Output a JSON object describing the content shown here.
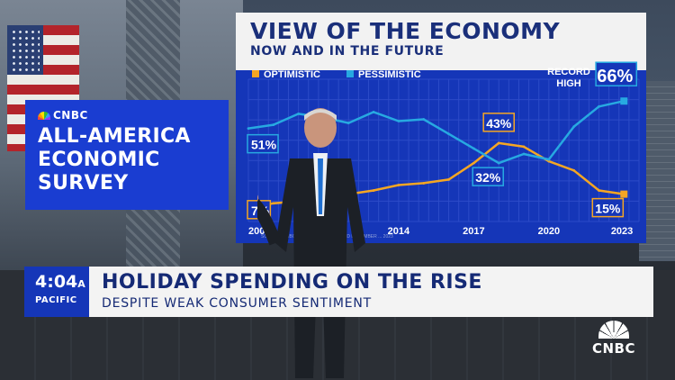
{
  "survey_panel": {
    "brand": "CNBC",
    "title_lines": [
      "ALL-AMERICA",
      "ECONOMIC",
      "SURVEY"
    ]
  },
  "screen": {
    "title": "VIEW OF THE ECONOMY",
    "subtitle": "NOW AND IN THE FUTURE",
    "record_label_lines": [
      "RECORD",
      "HIGH"
    ],
    "source_note": "SOURCE: CNBC ... SURVEY CONDUCTED DECEMBER ... 2023"
  },
  "chart_data": {
    "type": "line",
    "title": "VIEW OF THE ECONOMY",
    "subtitle": "NOW AND IN THE FUTURE",
    "x_tick_labels": [
      "2008",
      "2014",
      "2017",
      "2020",
      "2023"
    ],
    "x_ticks": [
      2008,
      2014,
      2017,
      2020,
      2023
    ],
    "xlim": [
      2008,
      2023.6
    ],
    "ylim": [
      0,
      75
    ],
    "grid": true,
    "legend_position": "top-left",
    "series": [
      {
        "name": "OPTIMISTIC",
        "color": "#f5a623",
        "x": [
          2008,
          2009,
          2010,
          2011,
          2012,
          2013,
          2014,
          2015,
          2016,
          2017,
          2018,
          2019,
          2020,
          2021,
          2022,
          2023
        ],
        "y": [
          7,
          10,
          11,
          13,
          15,
          17,
          20,
          21,
          23,
          32,
          43,
          41,
          33,
          28,
          17,
          15
        ]
      },
      {
        "name": "PESSIMISTIC",
        "color": "#27a9e1",
        "x": [
          2008,
          2009,
          2010,
          2011,
          2012,
          2013,
          2014,
          2015,
          2016,
          2017,
          2018,
          2019,
          2020,
          2021,
          2022,
          2023
        ],
        "y": [
          51,
          53,
          59,
          57,
          54,
          60,
          55,
          56,
          48,
          40,
          32,
          37,
          34,
          52,
          63,
          66
        ]
      }
    ],
    "annotations": [
      {
        "text": "51%",
        "series": "PESSIMISTIC",
        "x": 2008
      },
      {
        "text": "7%",
        "series": "OPTIMISTIC",
        "x": 2008
      },
      {
        "text": "43%",
        "series": "OPTIMISTIC",
        "x": 2018
      },
      {
        "text": "32%",
        "series": "PESSIMISTIC",
        "x": 2018
      },
      {
        "text": "15%",
        "series": "OPTIMISTIC",
        "x": 2023
      },
      {
        "text": "66%",
        "series": "PESSIMISTIC",
        "x": 2023
      }
    ]
  },
  "ticker": {
    "time": "4:04",
    "ampm": "A",
    "timezone": "PACIFIC",
    "headline": "HOLIDAY SPENDING ON THE RISE",
    "subhead": "DESPITE WEAK CONSUMER SENTIMENT"
  },
  "network_logo": "CNBC",
  "colors": {
    "brand_blue": "#1536b8",
    "optimistic": "#f5a623",
    "pessimistic": "#27a9e1",
    "headline_text": "#152a75"
  }
}
